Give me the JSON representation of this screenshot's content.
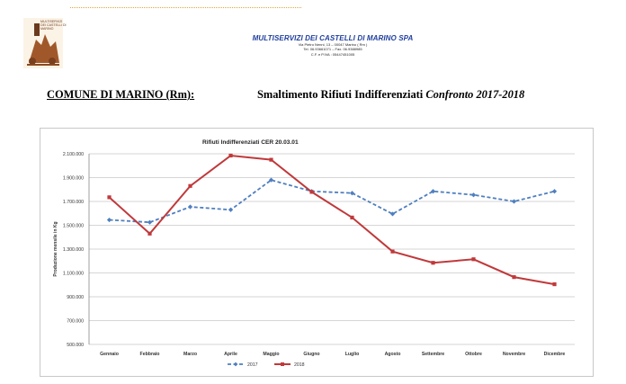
{
  "header": {
    "logo_line1": "MULTISERVIZI",
    "logo_line2": "DEI CASTELLI DI",
    "logo_line3": "MARINO",
    "company_name": "MULTISERVIZI DEI CASTELLI DI MARINO SPA",
    "address": "Via Pietro Nenni, 13 – 00047 Marino ( Rm )",
    "phone": "Tel. 06.93661071 – Fax. 06.9388985",
    "vat": "C.F. e P.IVA : 05447451005"
  },
  "page_title": {
    "left": "COMUNE DI MARINO (Rm):",
    "right_main": "Smaltimento Rifiuti Indifferenziati",
    "right_sub": "Confronto 2017-2018"
  },
  "colors": {
    "s2017": "#4f7fbf",
    "s2018": "#c0393b",
    "grid": "#c9c9c9"
  },
  "chart_data": {
    "type": "line",
    "title": "Rifiuti Indifferenziati CER 20.03.01",
    "xlabel": "",
    "ylabel": "Produzione mensile in Kg",
    "categories": [
      "Gennaio",
      "Febbraio",
      "Marzo",
      "Aprile",
      "Maggio",
      "Giugno",
      "Luglio",
      "Agosto",
      "Settembre",
      "Ottobre",
      "Novembre",
      "Dicembre"
    ],
    "yticks": [
      "500.000",
      "700.000",
      "900.000",
      "1.100.000",
      "1.300.000",
      "1.500.000",
      "1.700.000",
      "1.900.000",
      "2.100.000"
    ],
    "ylim": [
      500000,
      2100000
    ],
    "series": [
      {
        "name": "2017",
        "values": [
          1545000,
          1525000,
          1655000,
          1630000,
          1880000,
          1785000,
          1770000,
          1595000,
          1785000,
          1755000,
          1700000,
          1785000
        ]
      },
      {
        "name": "2018",
        "values": [
          1735000,
          1430000,
          1830000,
          2085000,
          2050000,
          1780000,
          1565000,
          1280000,
          1185000,
          1215000,
          1065000,
          1005000
        ]
      }
    ]
  }
}
